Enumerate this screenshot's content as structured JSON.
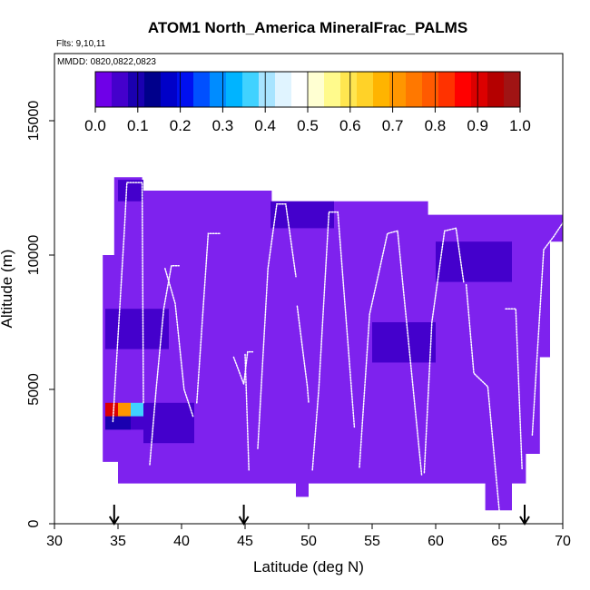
{
  "chart_data": {
    "type": "heatmap",
    "title": "ATOM1 North_America MineralFrac_PALMS",
    "flights_note": "Flts: 9,10,11",
    "dates_note": "MMDD: 0820,0822,0823",
    "xlabel": "Latitude (deg N)",
    "ylabel": "Altitude (m)",
    "xlim": [
      30,
      70
    ],
    "ylim": [
      0,
      17500
    ],
    "x_ticks": [
      "30",
      "35",
      "40",
      "45",
      "50",
      "55",
      "60",
      "65",
      "70"
    ],
    "y_ticks": [
      "0",
      "5000",
      "10000",
      "15000"
    ],
    "grid": false,
    "colorbar": {
      "range": [
        0,
        1
      ],
      "ticks": [
        "0.0",
        "0.1",
        "0.2",
        "0.3",
        "0.4",
        "0.5",
        "0.6",
        "0.7",
        "0.8",
        "0.9",
        "1.0"
      ],
      "colors": [
        "#6f00e8",
        "#4400cc",
        "#1a00b0",
        "#00008b",
        "#0000c8",
        "#0010f0",
        "#0050ff",
        "#008cff",
        "#00b4ff",
        "#40d2ff",
        "#a8e4ff",
        "#e0f4ff",
        "#ffffff",
        "#ffffd2",
        "#fffa8c",
        "#ffe650",
        "#ffd228",
        "#ffb400",
        "#ff9600",
        "#ff7800",
        "#ff5a00",
        "#ff3200",
        "#ff0000",
        "#dc0000",
        "#b40000",
        "#a01414"
      ]
    },
    "background_color": "#7e22ee",
    "cell_values": [
      {
        "lat": [
          34.0,
          35.0
        ],
        "alt": [
          3500,
          4000
        ],
        "value": 0.06
      },
      {
        "lat": [
          35.0,
          36.0
        ],
        "alt": [
          3500,
          4000
        ],
        "value": 0.08
      },
      {
        "lat": [
          36.0,
          37.0
        ],
        "alt": [
          3500,
          4000
        ],
        "value": 0.05
      },
      {
        "lat": [
          34.0,
          35.0
        ],
        "alt": [
          4000,
          4500
        ],
        "value": 0.92
      },
      {
        "lat": [
          35.0,
          36.0
        ],
        "alt": [
          4000,
          4500
        ],
        "value": 0.7
      },
      {
        "lat": [
          36.0,
          37.0
        ],
        "alt": [
          4000,
          4500
        ],
        "value": 0.35
      },
      {
        "lat": [
          60.0,
          66.0
        ],
        "alt": [
          9000,
          10500
        ],
        "value": 0.04
      },
      {
        "lat": [
          35.0,
          37.0
        ],
        "alt": [
          12000,
          12800
        ],
        "value": 0.02
      },
      {
        "lat": [
          47.0,
          52.0
        ],
        "alt": [
          11000,
          12000
        ],
        "value": 0.02
      },
      {
        "lat": [
          37.0,
          41.0
        ],
        "alt": [
          3000,
          4500
        ],
        "value": 0.03
      },
      {
        "lat": [
          34.0,
          39.0
        ],
        "alt": [
          6500,
          8000
        ],
        "value": 0.02
      },
      {
        "lat": [
          55.0,
          60.0
        ],
        "alt": [
          6000,
          7500
        ],
        "value": 0.02
      }
    ],
    "flight_tracks": [
      [
        [
          34.6,
          3800
        ],
        [
          35.5,
          10900
        ],
        [
          35.7,
          12700
        ],
        [
          36.9,
          12700
        ],
        [
          37.0,
          4500
        ]
      ],
      [
        [
          37.5,
          2200
        ],
        [
          38.0,
          5000
        ],
        [
          38.6,
          8000
        ],
        [
          39.2,
          9600
        ],
        [
          39.8,
          9600
        ]
      ],
      [
        [
          38.7,
          9500
        ],
        [
          39.5,
          8200
        ],
        [
          40.2,
          5000
        ],
        [
          40.9,
          4000
        ]
      ],
      [
        [
          41.2,
          4500
        ],
        [
          42.1,
          10800
        ],
        [
          43.0,
          10800
        ]
      ],
      [
        [
          44.1,
          6200
        ],
        [
          44.9,
          5200
        ],
        [
          45.2,
          6400
        ],
        [
          45.6,
          6400
        ]
      ],
      [
        [
          45.0,
          6300
        ],
        [
          45.3,
          2000
        ]
      ],
      [
        [
          46.0,
          2800
        ],
        [
          46.8,
          9500
        ],
        [
          47.5,
          11900
        ],
        [
          48.2,
          11900
        ],
        [
          49.0,
          9200
        ]
      ],
      [
        [
          49.1,
          8100
        ],
        [
          49.9,
          5100
        ],
        [
          50.0,
          4500
        ]
      ],
      [
        [
          50.3,
          2000
        ],
        [
          50.8,
          5000
        ],
        [
          51.6,
          11600
        ],
        [
          52.3,
          11600
        ],
        [
          53.6,
          3600
        ]
      ],
      [
        [
          54.0,
          2100
        ],
        [
          54.8,
          7800
        ],
        [
          55.6,
          9500
        ],
        [
          56.2,
          10800
        ],
        [
          57.0,
          10900
        ],
        [
          58.9,
          1800
        ]
      ],
      [
        [
          59.1,
          1900
        ],
        [
          59.7,
          7500
        ],
        [
          60.7,
          10900
        ],
        [
          61.6,
          11000
        ],
        [
          62.2,
          9000
        ]
      ],
      [
        [
          62.4,
          8900
        ],
        [
          63.0,
          5600
        ],
        [
          64.1,
          5100
        ],
        [
          65.0,
          500
        ]
      ],
      [
        [
          65.5,
          8000
        ],
        [
          66.3,
          8000
        ],
        [
          66.8,
          2000
        ]
      ],
      [
        [
          67.6,
          3300
        ],
        [
          68.5,
          10200
        ],
        [
          69.3,
          10700
        ],
        [
          70.0,
          11200
        ]
      ]
    ],
    "arrow_latitudes": [
      34.7,
      44.9,
      67.0
    ]
  }
}
